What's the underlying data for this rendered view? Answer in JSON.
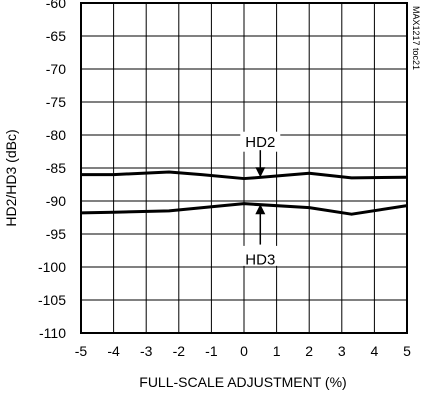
{
  "chart_data": {
    "type": "line",
    "xlabel": "FULL-SCALE ADJUSTMENT (%)",
    "ylabel": "HD2/HD3 (dBc)",
    "watermark": "MAX1217 toc21",
    "xlim": [
      -5,
      5
    ],
    "ylim": [
      -110,
      -60
    ],
    "x_ticks": [
      -5,
      -4,
      -3,
      -2,
      -1,
      0,
      1,
      2,
      3,
      4,
      5
    ],
    "y_ticks": [
      -60,
      -65,
      -70,
      -75,
      -80,
      -85,
      -90,
      -95,
      -100,
      -105,
      -110
    ],
    "grid": true,
    "series": [
      {
        "name": "HD2",
        "x": [
          -5,
          -4,
          -2.3,
          -1.3,
          0,
          0.3,
          2,
          3.3,
          5
        ],
        "y": [
          -86.0,
          -86.0,
          -85.6,
          -86.0,
          -86.6,
          -86.5,
          -85.8,
          -86.5,
          -86.4
        ]
      },
      {
        "name": "HD3",
        "x": [
          -5,
          -4,
          -2.3,
          0,
          0.3,
          2,
          3.3,
          5
        ],
        "y": [
          -91.8,
          -91.7,
          -91.5,
          -90.4,
          -90.5,
          -91.0,
          -92.0,
          -90.7
        ]
      }
    ],
    "annotations": [
      {
        "text": "HD2",
        "series": 0
      },
      {
        "text": "HD3",
        "series": 1
      }
    ]
  }
}
